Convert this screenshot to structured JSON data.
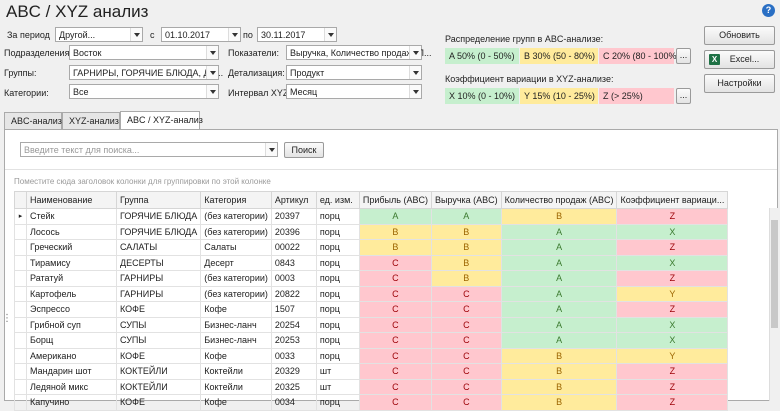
{
  "title": "ABC / XYZ анализ",
  "help_glyph": "?",
  "filters": {
    "period_label": "За период",
    "period_value": "Другой...",
    "from_label": "с",
    "from_value": "01.10.2017",
    "to_label": "по",
    "to_value": "30.11.2017",
    "division_label": "Подразделения:",
    "division_value": "Восток",
    "groups_label": "Группы:",
    "groups_value": "ГАРНИРЫ, ГОРЯЧИЕ БЛЮДА, ДЕ...",
    "categories_label": "Категории:",
    "categories_value": "Все",
    "indicators_label": "Показатели:",
    "indicators_value": "Выручка, Количество продаж, П...",
    "detail_label": "Детализация:",
    "detail_value": "Продукт",
    "xyz_interval_label": "Интервал XYZ:",
    "xyz_interval_value": "Месяц"
  },
  "abc_dist": {
    "label": "Распределение групп в ABC-анализе:",
    "a": "A 50% (0 - 50%)",
    "b": "B 30% (50 - 80%)",
    "c": "C 20% (80 - 100%)"
  },
  "xyz_dist": {
    "label": "Коэффициент вариации в XYZ-анализе:",
    "x": "X 10% (0 - 10%)",
    "y": "Y 15% (10 - 25%)",
    "z": "Z  (> 25%)"
  },
  "ellipsis": "...",
  "buttons": {
    "refresh": "Обновить",
    "excel": "Excel...",
    "settings": "Настройки"
  },
  "tabs": [
    "ABC-анализ",
    "XYZ-анализ",
    "ABC / XYZ-анализ"
  ],
  "search": {
    "placeholder": "Введите текст для поиска...",
    "button": "Поиск"
  },
  "group_hint": "Поместите сюда заголовок колонки для группировки по этой колонке",
  "columns": [
    "Наименование",
    "Группа",
    "Категория",
    "Артикул",
    "ед. изм.",
    "Прибыль (ABC)",
    "Выручка (ABC)",
    "Количество продаж (ABC)",
    "Коэффициент вариаци..."
  ],
  "rows": [
    [
      "Стейк",
      "ГОРЯЧИЕ БЛЮДА",
      "(без категории)",
      "20397",
      "порц",
      "A",
      "A",
      "B",
      "Z"
    ],
    [
      "Лосось",
      "ГОРЯЧИЕ БЛЮДА",
      "(без категории)",
      "20396",
      "порц",
      "B",
      "B",
      "A",
      "X"
    ],
    [
      "Греческий",
      "САЛАТЫ",
      "Салаты",
      "00022",
      "порц",
      "B",
      "B",
      "A",
      "Z"
    ],
    [
      "Тирамису",
      "ДЕСЕРТЫ",
      "Десерт",
      "0843",
      "порц",
      "C",
      "B",
      "A",
      "X"
    ],
    [
      "Рататуй",
      "ГАРНИРЫ",
      "(без категории)",
      "0003",
      "порц",
      "C",
      "B",
      "A",
      "Z"
    ],
    [
      "Картофель",
      "ГАРНИРЫ",
      "(без категории)",
      "20822",
      "порц",
      "C",
      "C",
      "A",
      "Y"
    ],
    [
      "Эспрессо",
      "КОФЕ",
      "Кофе",
      "1507",
      "порц",
      "C",
      "C",
      "A",
      "Z"
    ],
    [
      "Грибной суп",
      "СУПЫ",
      "Бизнес-ланч",
      "20254",
      "порц",
      "C",
      "C",
      "A",
      "X"
    ],
    [
      "Борщ",
      "СУПЫ",
      "Бизнес-ланч",
      "20253",
      "порц",
      "C",
      "C",
      "A",
      "X"
    ],
    [
      "Американо",
      "КОФЕ",
      "Кофе",
      "0033",
      "порц",
      "C",
      "C",
      "B",
      "Y"
    ],
    [
      "Мандарин шот",
      "КОКТЕЙЛИ",
      "Коктейли",
      "20329",
      "шт",
      "C",
      "C",
      "B",
      "Z"
    ],
    [
      "Ледяной микс",
      "КОКТЕЙЛИ",
      "Коктейли",
      "20325",
      "шт",
      "C",
      "C",
      "B",
      "Z"
    ],
    [
      "Капучино",
      "КОФЕ",
      "Кофе",
      "0034",
      "порц",
      "C",
      "C",
      "B",
      "Z"
    ]
  ],
  "colors": {
    "A": "#c6efce",
    "B": "#ffeb9c",
    "C": "#ffc7ce",
    "X": "#c6efce",
    "Y": "#ffeb9c",
    "Z": "#ffc7ce"
  },
  "row_marker": "▸",
  "drag_handle": "⋮"
}
